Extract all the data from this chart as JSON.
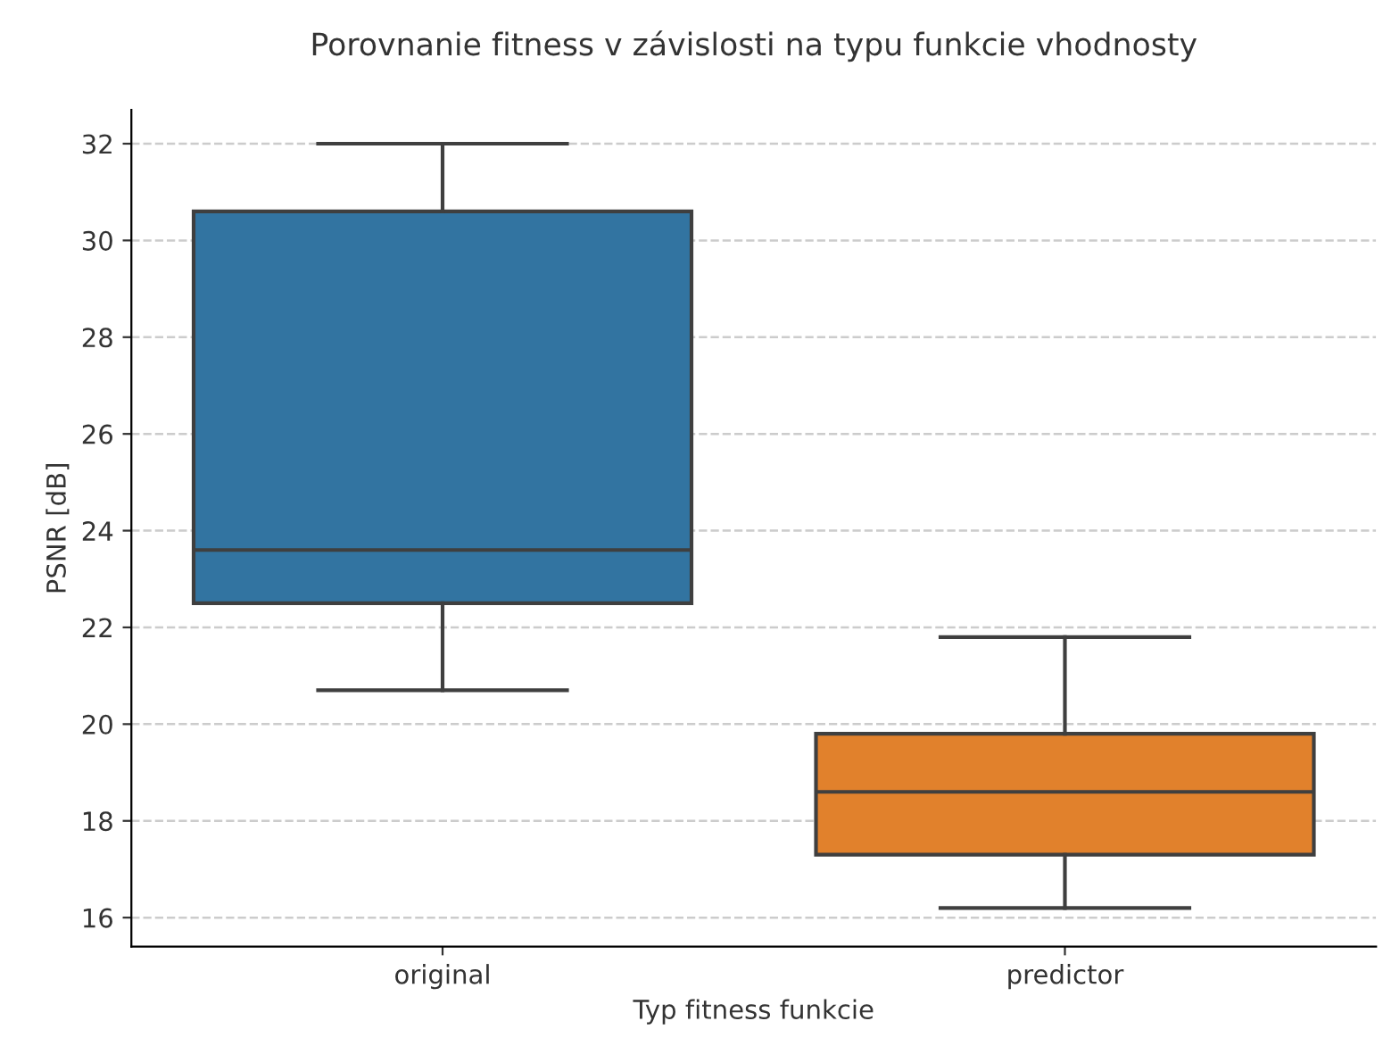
{
  "chart_data": {
    "type": "box",
    "title": "Porovnanie fitness v závislosti na typu funkcie vhodnosty",
    "xlabel": "Typ fitness funkcie",
    "ylabel": "PSNR [dB]",
    "categories": [
      "original",
      "predictor"
    ],
    "boxes": [
      {
        "low": 20.7,
        "q1": 22.5,
        "median": 23.6,
        "q3": 30.6,
        "high": 32.0
      },
      {
        "low": 16.2,
        "q1": 17.3,
        "median": 18.6,
        "q3": 19.8,
        "high": 21.8
      }
    ],
    "colors": [
      "#3274a1",
      "#e1812c"
    ],
    "ylim": [
      15.4,
      32.7
    ],
    "yticks": [
      16,
      18,
      20,
      22,
      24,
      26,
      28,
      30,
      32
    ],
    "grid": "y"
  }
}
